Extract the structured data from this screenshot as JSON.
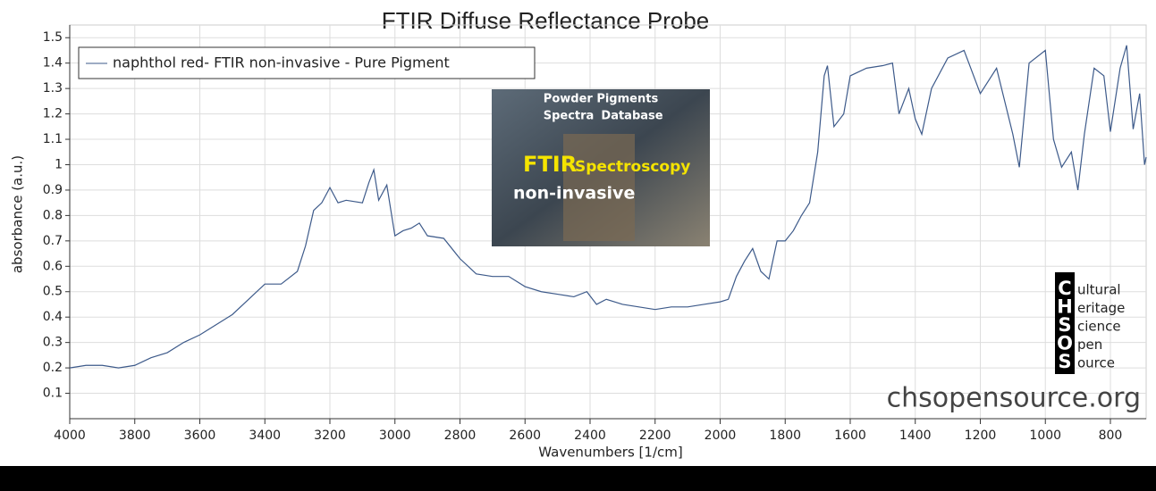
{
  "chart_data": {
    "type": "line",
    "title": "FTIR Diffuse Reflectance Probe",
    "x_label": "Wavenumbers [1/cm]",
    "y_label": "absorbance (a.u.)",
    "xlim": [
      4000,
      690
    ],
    "ylim": [
      0,
      1.55
    ],
    "xticks": [
      4000,
      3800,
      3600,
      3400,
      3200,
      3000,
      2800,
      2600,
      2400,
      2200,
      2000,
      1800,
      1600,
      1400,
      1200,
      1000,
      800
    ],
    "yticks": [
      0.1,
      0.2,
      0.3,
      0.4,
      0.5,
      0.6,
      0.7,
      0.8,
      0.9,
      1,
      1.1,
      1.2,
      1.3,
      1.4,
      1.5
    ],
    "grid": true,
    "legend_position": "upper-left",
    "x": [
      4000,
      3950,
      3900,
      3850,
      3800,
      3750,
      3700,
      3650,
      3600,
      3550,
      3500,
      3450,
      3400,
      3350,
      3300,
      3275,
      3250,
      3225,
      3200,
      3175,
      3150,
      3100,
      3080,
      3065,
      3050,
      3025,
      3000,
      2975,
      2950,
      2925,
      2900,
      2850,
      2800,
      2750,
      2700,
      2650,
      2600,
      2550,
      2500,
      2450,
      2410,
      2380,
      2350,
      2300,
      2250,
      2200,
      2150,
      2100,
      2050,
      2000,
      1975,
      1950,
      1925,
      1900,
      1875,
      1850,
      1825,
      1800,
      1775,
      1750,
      1725,
      1700,
      1680,
      1670,
      1650,
      1620,
      1600,
      1550,
      1500,
      1470,
      1450,
      1420,
      1400,
      1380,
      1350,
      1300,
      1250,
      1200,
      1150,
      1100,
      1080,
      1050,
      1000,
      975,
      950,
      920,
      900,
      880,
      850,
      820,
      800,
      770,
      750,
      730,
      710,
      695,
      690
    ],
    "series": [
      {
        "name": "naphthol red- FTIR non-invasive - Pure Pigment",
        "color": "#3d5a8a",
        "values": [
          0.2,
          0.21,
          0.21,
          0.2,
          0.21,
          0.24,
          0.26,
          0.3,
          0.33,
          0.37,
          0.41,
          0.47,
          0.53,
          0.53,
          0.58,
          0.68,
          0.82,
          0.85,
          0.91,
          0.85,
          0.86,
          0.85,
          0.93,
          0.98,
          0.86,
          0.92,
          0.72,
          0.74,
          0.75,
          0.77,
          0.72,
          0.71,
          0.63,
          0.57,
          0.56,
          0.56,
          0.52,
          0.5,
          0.49,
          0.48,
          0.5,
          0.45,
          0.47,
          0.45,
          0.44,
          0.43,
          0.44,
          0.44,
          0.45,
          0.46,
          0.47,
          0.56,
          0.62,
          0.67,
          0.58,
          0.55,
          0.7,
          0.7,
          0.74,
          0.8,
          0.85,
          1.05,
          1.35,
          1.39,
          1.15,
          1.2,
          1.35,
          1.38,
          1.39,
          1.4,
          1.2,
          1.3,
          1.18,
          1.12,
          1.3,
          1.42,
          1.45,
          1.28,
          1.38,
          1.12,
          0.99,
          1.4,
          1.45,
          1.1,
          0.99,
          1.05,
          0.9,
          1.12,
          1.38,
          1.35,
          1.13,
          1.38,
          1.47,
          1.14,
          1.28,
          1.0,
          1.03
        ]
      }
    ],
    "inset": {
      "lines": [
        "Powder Pigments",
        "Spectra",
        "Database",
        "FTIR",
        "Spectroscopy",
        "non-invasive"
      ]
    },
    "logo": {
      "letters": [
        "C",
        "H",
        "S",
        "O",
        "S"
      ],
      "words": [
        "ultural",
        "eritage",
        "cience",
        "pen",
        "ource"
      ]
    },
    "watermark": "chsopensource.org"
  }
}
